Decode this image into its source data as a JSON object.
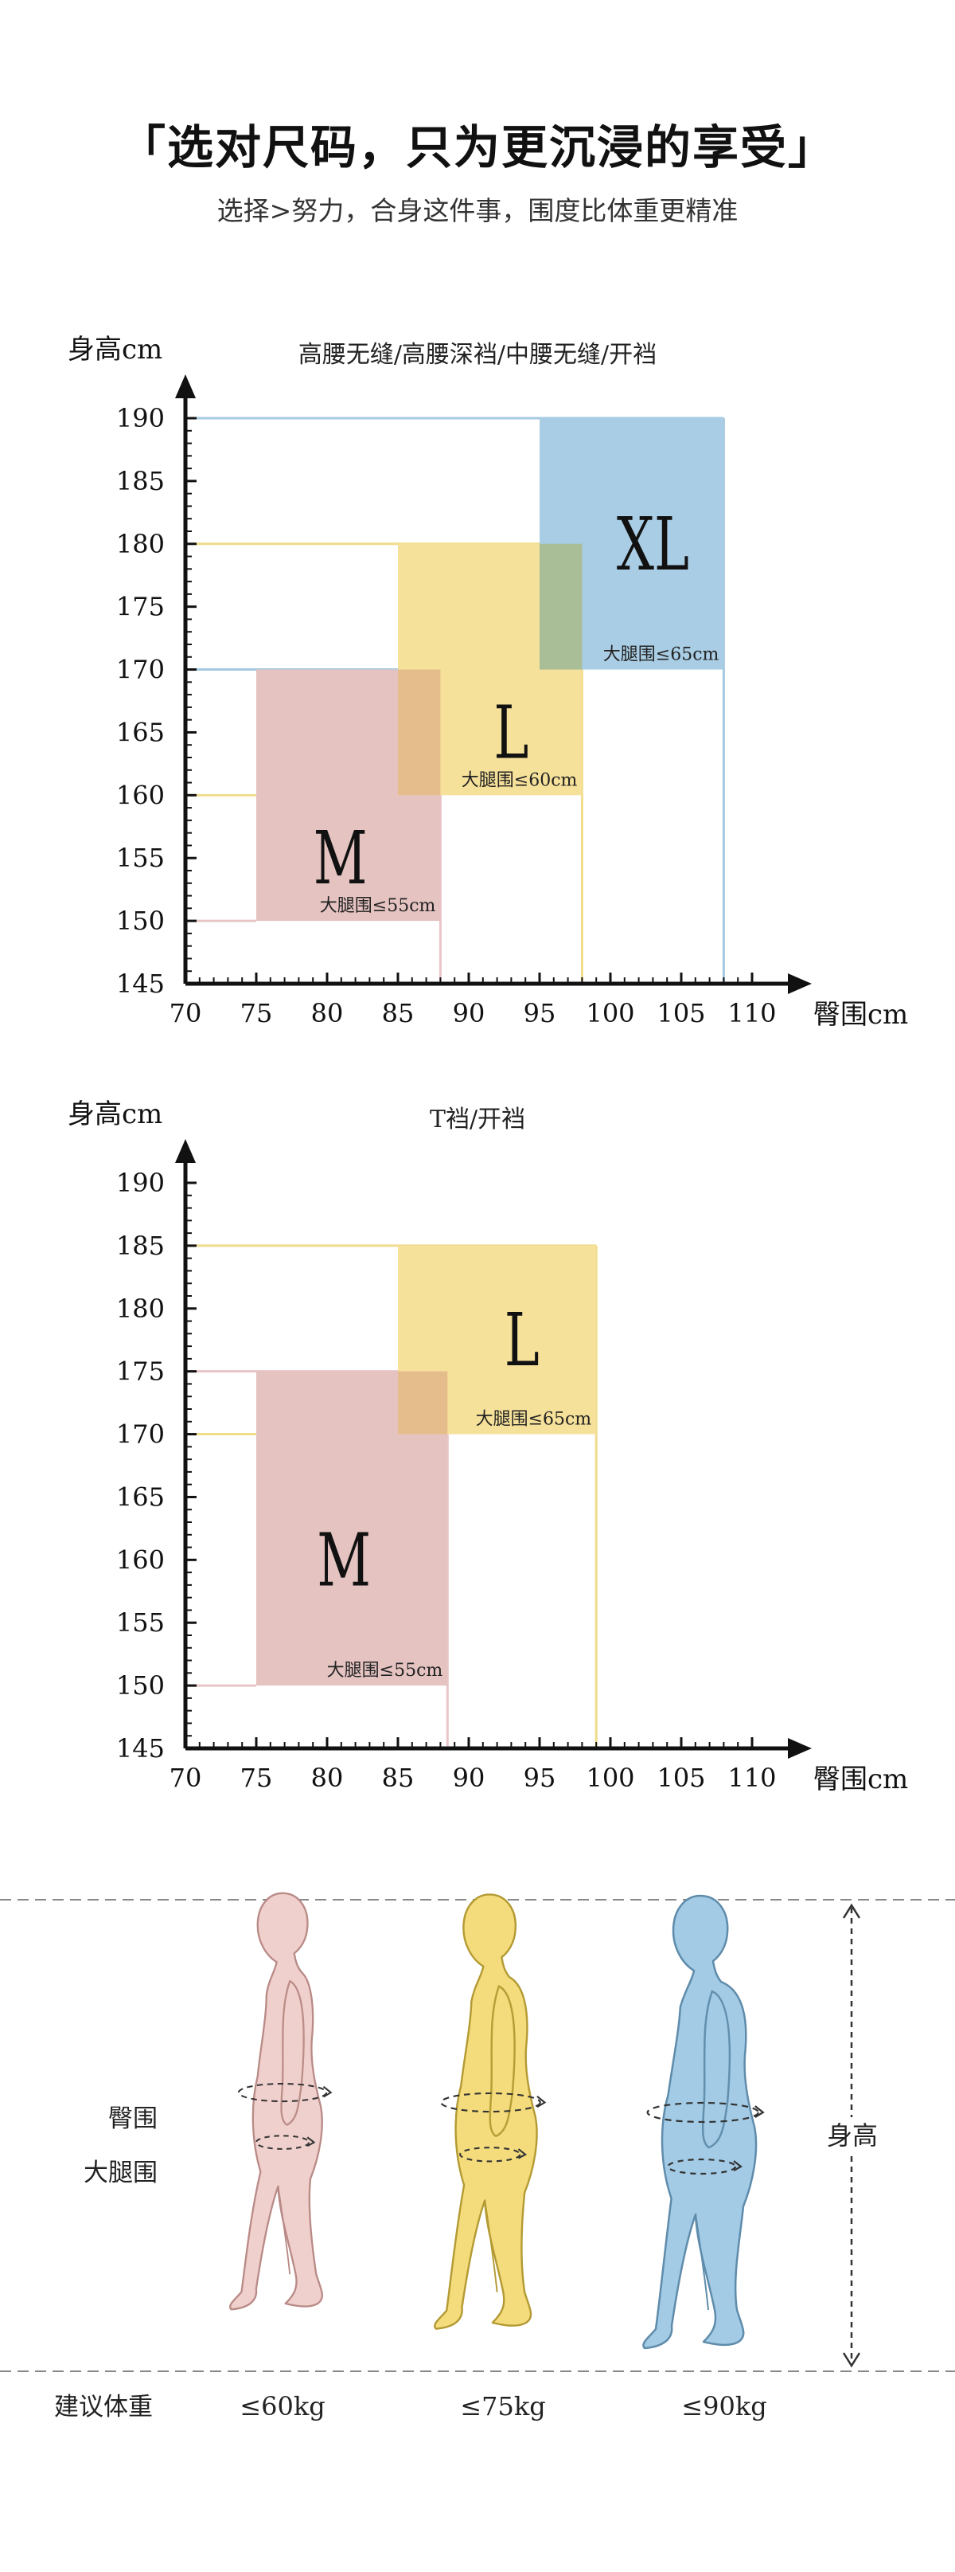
{
  "header": {
    "title": "「选对尺码，只为更沉浸的享受」",
    "subtitle": "选择>努力，合身这件事，围度比体重更精准"
  },
  "colors": {
    "M": "#e4c3c1",
    "L": "#f6e19a",
    "XL": "#a9cde4",
    "M_line": "#e8c6c8",
    "L_line": "#f0dc8c",
    "XL_line": "#a6c9e2",
    "overlap_ML": "#e5bd8c",
    "overlap_LXL": "#a9be96",
    "axis": "#111111"
  },
  "chart_data": [
    {
      "type": "area",
      "title": "高腰无缝/高腰深裆/中腰无缝/开裆",
      "xlabel": "臀围cm",
      "ylabel": "身高cm",
      "xlim": [
        70,
        110
      ],
      "ylim": [
        145,
        190
      ],
      "x_ticks": [
        70,
        75,
        80,
        85,
        90,
        95,
        100,
        105,
        110
      ],
      "y_ticks": [
        145,
        150,
        155,
        160,
        165,
        170,
        175,
        180,
        185,
        190
      ],
      "series": [
        {
          "name": "M",
          "hip": [
            75,
            88
          ],
          "height": [
            150,
            170
          ],
          "hip_max": 88,
          "height_max": 170,
          "label": "大腿围≤55cm",
          "color": "#e4c3c1",
          "line_color": "#e8c6c8"
        },
        {
          "name": "L",
          "hip": [
            85,
            98
          ],
          "height": [
            160,
            180
          ],
          "hip_max": 98,
          "height_max": 180,
          "label": "大腿围≤60cm",
          "color": "#f6e19a",
          "line_color": "#f0dc8c"
        },
        {
          "name": "XL",
          "hip": [
            95,
            108
          ],
          "height": [
            170,
            190
          ],
          "hip_max": 108,
          "height_max": 190,
          "label": "大腿围≤65cm",
          "color": "#a9cde4",
          "line_color": "#a6c9e2"
        }
      ]
    },
    {
      "type": "area",
      "title": "T裆/开裆",
      "xlabel": "臀围cm",
      "ylabel": "身高cm",
      "xlim": [
        70,
        110
      ],
      "ylim": [
        145,
        190
      ],
      "x_ticks": [
        70,
        75,
        80,
        85,
        90,
        95,
        100,
        105,
        110
      ],
      "y_ticks": [
        145,
        150,
        155,
        160,
        165,
        170,
        175,
        180,
        185,
        190
      ],
      "series": [
        {
          "name": "M",
          "hip": [
            75,
            88.5
          ],
          "height": [
            150,
            175
          ],
          "hip_max": 88.5,
          "height_max": 175,
          "label": "大腿围≤55cm",
          "color": "#e4c3c1",
          "line_color": "#e8c6c8"
        },
        {
          "name": "L",
          "hip": [
            85,
            99
          ],
          "height": [
            170,
            185
          ],
          "hip_max": 99,
          "height_max": 185,
          "label": "大腿围≤65cm",
          "color": "#f6e19a",
          "line_color": "#f0dc8c"
        }
      ]
    }
  ],
  "figures": {
    "hip_label": "臀围",
    "thigh_label": "大腿围",
    "height_label": "身高",
    "weight_label": "建议体重",
    "items": [
      {
        "weight": "≤60kg",
        "color": "#efd0cc",
        "stroke": "#b98a86"
      },
      {
        "weight": "≤75kg",
        "color": "#f4dc7c",
        "stroke": "#b39a33"
      },
      {
        "weight": "≤90kg",
        "color": "#a3cbe6",
        "stroke": "#5f8cab"
      }
    ]
  }
}
